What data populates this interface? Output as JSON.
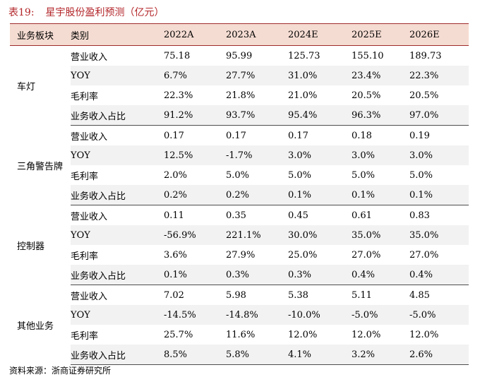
{
  "title": {
    "label": "表19:",
    "text": "星宇股份盈利预测（亿元）"
  },
  "columns": [
    "业务板块",
    "类别",
    "2022A",
    "2023A",
    "2024E",
    "2025E",
    "2026E"
  ],
  "groups": [
    {
      "segment": "车灯",
      "rows": [
        {
          "metric": "营业收入",
          "values": [
            "75.18",
            "95.99",
            "125.73",
            "155.10",
            "189.73"
          ]
        },
        {
          "metric": "YOY",
          "values": [
            "6.7%",
            "27.7%",
            "31.0%",
            "23.4%",
            "22.3%"
          ]
        },
        {
          "metric": "毛利率",
          "values": [
            "22.3%",
            "21.8%",
            "21.0%",
            "20.5%",
            "20.5%"
          ]
        },
        {
          "metric": "业务收入占比",
          "values": [
            "91.2%",
            "93.7%",
            "95.4%",
            "96.3%",
            "97.0%"
          ]
        }
      ]
    },
    {
      "segment": "三角警告牌",
      "rows": [
        {
          "metric": "营业收入",
          "values": [
            "0.17",
            "0.17",
            "0.17",
            "0.18",
            "0.19"
          ]
        },
        {
          "metric": "YOY",
          "values": [
            "12.5%",
            "-1.7%",
            "3.0%",
            "3.0%",
            "3.0%"
          ]
        },
        {
          "metric": "毛利率",
          "values": [
            "2.0%",
            "5.0%",
            "5.0%",
            "5.0%",
            "5.0%"
          ]
        },
        {
          "metric": "业务收入占比",
          "values": [
            "0.2%",
            "0.2%",
            "0.1%",
            "0.1%",
            "0.1%"
          ]
        }
      ]
    },
    {
      "segment": "控制器",
      "rows": [
        {
          "metric": "营业收入",
          "values": [
            "0.11",
            "0.35",
            "0.45",
            "0.61",
            "0.83"
          ]
        },
        {
          "metric": "YOY",
          "values": [
            "-56.9%",
            "221.1%",
            "30.0%",
            "35.0%",
            "35.0%"
          ]
        },
        {
          "metric": "毛利率",
          "values": [
            "3.6%",
            "27.9%",
            "25.0%",
            "27.0%",
            "27.0%"
          ]
        },
        {
          "metric": "业务收入占比",
          "values": [
            "0.1%",
            "0.3%",
            "0.3%",
            "0.4%",
            "0.4%"
          ]
        }
      ]
    },
    {
      "segment": "其他业务",
      "rows": [
        {
          "metric": "营业收入",
          "values": [
            "7.02",
            "5.98",
            "5.38",
            "5.11",
            "4.85"
          ]
        },
        {
          "metric": "YOY",
          "values": [
            "-14.5%",
            "-14.8%",
            "-10.0%",
            "-5.0%",
            "-5.0%"
          ]
        },
        {
          "metric": "毛利率",
          "values": [
            "25.7%",
            "11.6%",
            "12.0%",
            "12.0%",
            "12.0%"
          ]
        },
        {
          "metric": "业务收入占比",
          "values": [
            "8.5%",
            "5.8%",
            "4.1%",
            "3.2%",
            "2.6%"
          ]
        }
      ]
    }
  ],
  "source": "资料来源：浙商证券研究所"
}
